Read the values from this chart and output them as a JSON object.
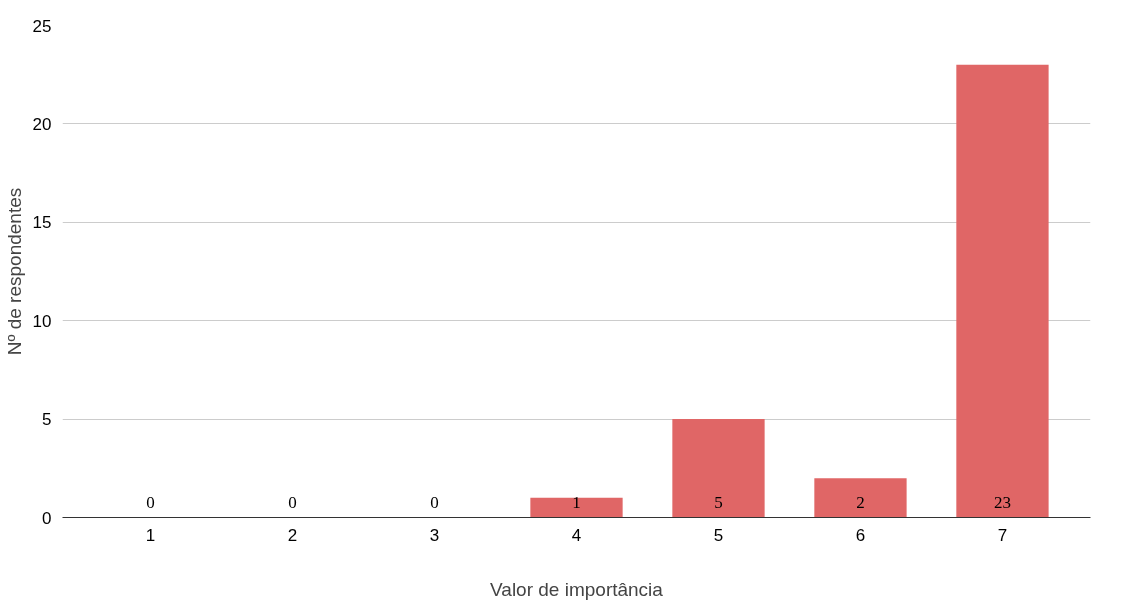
{
  "chart_data": {
    "type": "bar",
    "xlabel": "Valor de importância",
    "ylabel": "Nº de respondentes",
    "categories": [
      "1",
      "2",
      "3",
      "4",
      "5",
      "6",
      "7"
    ],
    "values": [
      0,
      0,
      0,
      1,
      5,
      2,
      23
    ],
    "color": "#e06666",
    "ylim": [
      0,
      25
    ],
    "yticks": [
      0,
      5,
      10,
      15,
      20,
      25
    ],
    "grid": "y",
    "data_labels": true
  }
}
